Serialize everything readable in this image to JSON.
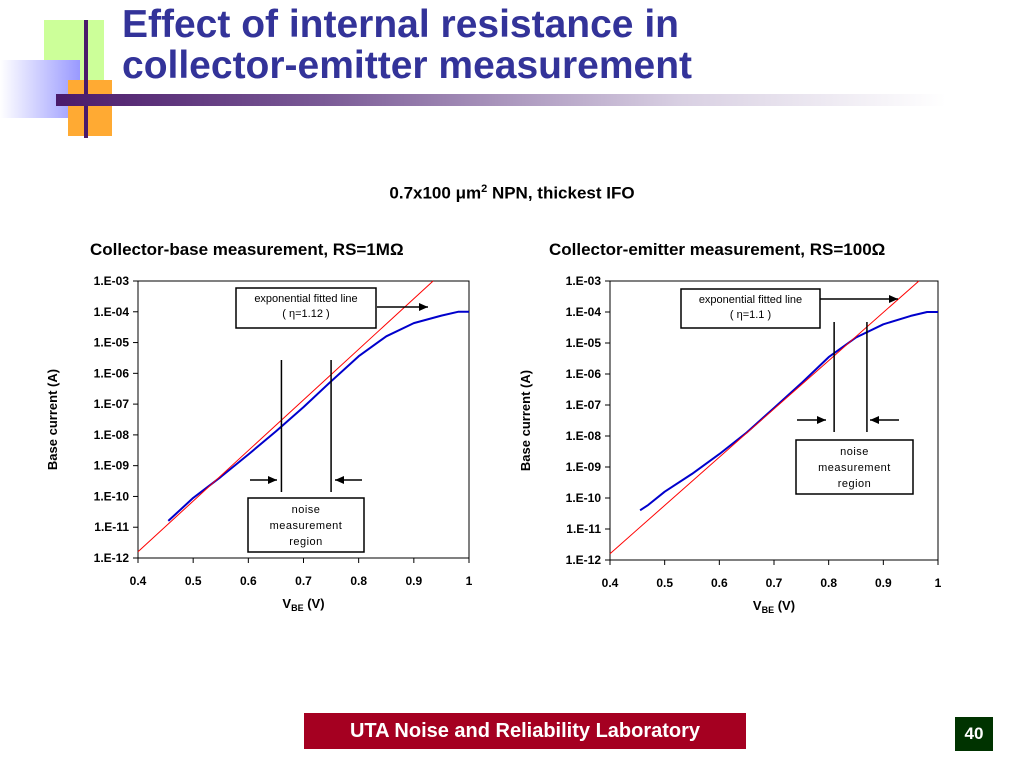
{
  "slide": {
    "title_line1": "Effect of internal resistance in",
    "title_line2": "collector-emitter measurement",
    "subtitle_before": "0.7x100 μm",
    "subtitle_sup": "2",
    "subtitle_after": " NPN, thickest IFO",
    "footer_lab": "UTA Noise and Reliability Laboratory",
    "page_number": "40"
  },
  "colors": {
    "title": "#333399",
    "measured": "#0000cc",
    "fit": "#ff0000",
    "footer_bg": "#a50021",
    "page_bg": "#003300"
  },
  "chart_data": [
    {
      "type": "line",
      "title": "Collector-base measurement, RS=1MΩ",
      "xlabel": "V",
      "xlabel_sub": "BE",
      "xlabel_unit": " (V)",
      "ylabel": "Base current (A)",
      "yscale": "log",
      "xlim": [
        0.4,
        1.0
      ],
      "ylim": [
        1e-12,
        0.001
      ],
      "x_ticks": [
        "0.4",
        "0.5",
        "0.6",
        "0.7",
        "0.8",
        "0.9",
        "1"
      ],
      "y_ticks": [
        "1.E-12",
        "1.E-11",
        "1.E-10",
        "1.E-09",
        "1.E-08",
        "1.E-07",
        "1.E-06",
        "1.E-05",
        "1.E-04",
        "1.E-03"
      ],
      "grid": false,
      "series": [
        {
          "kind": "measured",
          "x": [
            0.455,
            0.5,
            0.55,
            0.6,
            0.65,
            0.7,
            0.75,
            0.8,
            0.85,
            0.9,
            0.95,
            0.98,
            1.0
          ],
          "y": [
            1.6e-11,
            9e-11,
            4.3e-10,
            2.3e-09,
            1.3e-08,
            8e-08,
            5.5e-07,
            3.6e-06,
            1.6e-05,
            4.3e-05,
            7.5e-05,
            0.0001,
            0.0001
          ]
        },
        {
          "kind": "fit",
          "x": [
            0.4,
            0.935
          ],
          "y": [
            1.6e-12,
            0.001
          ]
        }
      ],
      "annotations": {
        "fit_label_line1": "exponential fitted line",
        "fit_label_line2": "( η=1.12 )",
        "noise_label_line1": "noise",
        "noise_label_line2": "measurement",
        "noise_label_line3": "region",
        "noise_region_x": [
          0.66,
          0.75
        ]
      }
    },
    {
      "type": "line",
      "title": "Collector-emitter measurement, RS=100Ω",
      "xlabel": "V",
      "xlabel_sub": "BE",
      "xlabel_unit": " (V)",
      "ylabel": "Base current (A)",
      "yscale": "log",
      "xlim": [
        0.4,
        1.0
      ],
      "ylim": [
        1e-12,
        0.001
      ],
      "x_ticks": [
        "0.4",
        "0.5",
        "0.6",
        "0.7",
        "0.8",
        "0.9",
        "1"
      ],
      "y_ticks": [
        "1.E-12",
        "1.E-11",
        "1.E-10",
        "1.E-09",
        "1.E-08",
        "1.E-07",
        "1.E-06",
        "1.E-05",
        "1.E-04",
        "1.E-03"
      ],
      "grid": false,
      "series": [
        {
          "kind": "measured",
          "x": [
            0.455,
            0.47,
            0.5,
            0.55,
            0.6,
            0.65,
            0.7,
            0.75,
            0.8,
            0.85,
            0.9,
            0.95,
            0.98,
            1.0
          ],
          "y": [
            4e-11,
            6e-11,
            1.6e-10,
            6e-10,
            2.6e-09,
            1.3e-08,
            8e-08,
            5e-07,
            3.5e-06,
            1.5e-05,
            4e-05,
            7.5e-05,
            0.0001,
            0.0001
          ]
        },
        {
          "kind": "fit",
          "x": [
            0.4,
            0.965
          ],
          "y": [
            1.6e-12,
            0.001
          ]
        }
      ],
      "annotations": {
        "fit_label_line1": "exponential fitted line",
        "fit_label_line2": "( η=1.1 )",
        "noise_label_line1": "noise",
        "noise_label_line2": "measurement",
        "noise_label_line3": "region",
        "noise_region_x": [
          0.81,
          0.87
        ]
      }
    }
  ]
}
